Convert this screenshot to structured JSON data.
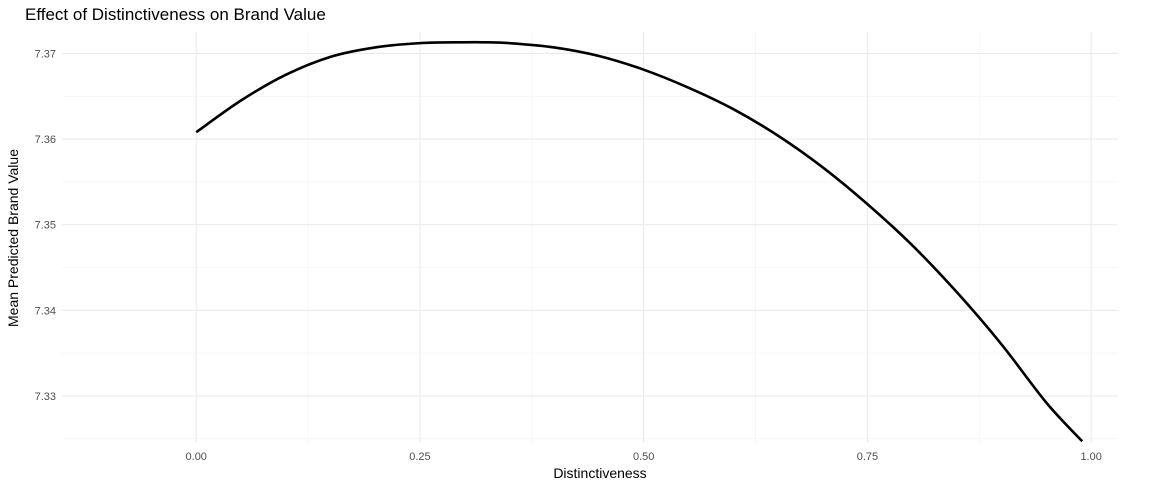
{
  "chart_data": {
    "type": "line",
    "title": "Effect of Distinctiveness on Brand Value",
    "xlabel": "Distinctiveness",
    "ylabel": "Mean Predicted Brand Value",
    "xlim": [
      -0.15,
      1.03
    ],
    "ylim": [
      7.3245,
      7.3725
    ],
    "x_ticks": [
      0,
      0.25,
      0.5,
      0.75,
      1
    ],
    "x_tick_labels": [
      "0.00",
      "0.25",
      "0.50",
      "0.75",
      "1.00"
    ],
    "y_ticks": [
      7.33,
      7.34,
      7.35,
      7.36,
      7.37
    ],
    "y_tick_labels": [
      "7.33",
      "7.34",
      "7.35",
      "7.36",
      "7.37"
    ],
    "grid": true,
    "legend": "none",
    "series": [
      {
        "x": [
          0,
          0.05,
          0.1,
          0.15,
          0.2,
          0.25,
          0.3,
          0.32,
          0.35,
          0.4,
          0.45,
          0.5,
          0.55,
          0.6,
          0.65,
          0.7,
          0.75,
          0.8,
          0.85,
          0.9,
          0.95,
          0.99
        ],
        "values": [
          7.3608,
          7.3645,
          7.3675,
          7.3696,
          7.3707,
          7.3712,
          7.3713,
          7.3713,
          7.3712,
          7.3707,
          7.3697,
          7.3681,
          7.366,
          7.3635,
          7.3604,
          7.3567,
          7.3524,
          7.3476,
          7.3421,
          7.336,
          7.3292,
          7.3247
        ],
        "color": "#000000"
      }
    ]
  }
}
